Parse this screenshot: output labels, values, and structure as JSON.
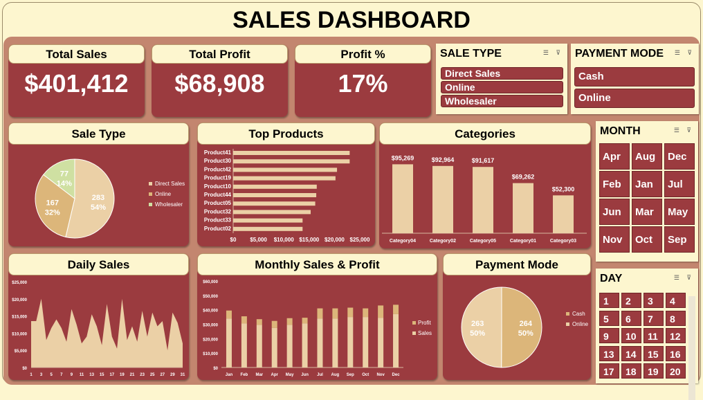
{
  "title": "SALES DASHBOARD",
  "kpis": [
    {
      "label": "Total Sales",
      "value": "$401,412"
    },
    {
      "label": "Total Profit",
      "value": "$68,908"
    },
    {
      "label": "Profit %",
      "value": "17%"
    }
  ],
  "slicers": {
    "sale_type": {
      "title": "SALE TYPE",
      "items": [
        "Direct Sales",
        "Online",
        "Wholesaler"
      ]
    },
    "payment_mode": {
      "title": "PAYMENT MODE",
      "items": [
        "Cash",
        "Online"
      ]
    },
    "month": {
      "title": "MONTH",
      "items": [
        "Apr",
        "Aug",
        "Dec",
        "Feb",
        "Jan",
        "Jul",
        "Jun",
        "Mar",
        "May",
        "Nov",
        "Oct",
        "Sep"
      ]
    },
    "day": {
      "title": "DAY",
      "items": [
        "1",
        "2",
        "3",
        "4",
        "5",
        "6",
        "7",
        "8",
        "9",
        "10",
        "11",
        "12",
        "13",
        "14",
        "15",
        "16",
        "17",
        "18",
        "19",
        "20"
      ]
    }
  },
  "cards": {
    "sale_type": "Sale Type",
    "top_products": "Top Products",
    "categories": "Categories",
    "daily_sales": "Daily Sales",
    "monthly": "Monthly Sales & Profit",
    "payment_mode": "Payment Mode"
  },
  "colors": {
    "card_bg": "#9b3b3f",
    "cream": "#fdf6cf",
    "bar": "#ebd0a6",
    "gold": "#dcb67a",
    "green": "#cfe0a2"
  },
  "chart_data": [
    {
      "id": "sale_type",
      "type": "pie",
      "labels": [
        "Direct Sales",
        "Online",
        "Wholesaler"
      ],
      "values": [
        283,
        167,
        77
      ],
      "percents": [
        "54%",
        "32%",
        "14%"
      ],
      "colors": [
        "#ebd0a6",
        "#dcb67a",
        "#cfe0a2"
      ],
      "legend": "right"
    },
    {
      "id": "top_products",
      "type": "bar",
      "orientation": "horizontal",
      "categories": [
        "Product41",
        "Product30",
        "Product42",
        "Product19",
        "Product10",
        "Product44",
        "Product05",
        "Product32",
        "Product33",
        "Product02"
      ],
      "values": [
        23000,
        23000,
        20500,
        20200,
        16500,
        16400,
        16200,
        15300,
        13700,
        13700
      ],
      "xticks": [
        "$0",
        "$5,000",
        "$10,000",
        "$15,000",
        "$20,000",
        "$25,000"
      ],
      "xlim": [
        0,
        25000
      ]
    },
    {
      "id": "categories",
      "type": "bar",
      "categories": [
        "Category04",
        "Category02",
        "Category05",
        "Category01",
        "Category03"
      ],
      "values": [
        95269,
        92964,
        91617,
        69262,
        52300
      ],
      "labels": [
        "$95,269",
        "$92,964",
        "$91,617",
        "$69,262",
        "$52,300"
      ],
      "ylim": [
        0,
        110000
      ]
    },
    {
      "id": "daily_sales",
      "type": "area",
      "x": [
        1,
        2,
        3,
        4,
        5,
        6,
        7,
        8,
        9,
        10,
        11,
        12,
        13,
        14,
        15,
        16,
        17,
        18,
        19,
        20,
        21,
        22,
        23,
        24,
        25,
        26,
        27,
        28,
        29,
        30,
        31
      ],
      "values": [
        13500,
        13500,
        20000,
        8000,
        11500,
        14000,
        11500,
        7500,
        17000,
        12500,
        7000,
        9000,
        15500,
        12000,
        6500,
        18500,
        9000,
        5500,
        20000,
        8000,
        12000,
        7500,
        16500,
        9000,
        16000,
        12000,
        13500,
        5000,
        16000,
        13000,
        7000
      ],
      "xticks": [
        "1",
        "3",
        "5",
        "7",
        "9",
        "11",
        "13",
        "15",
        "17",
        "19",
        "21",
        "23",
        "25",
        "27",
        "29",
        "31"
      ],
      "yticks": [
        "$0",
        "$5,000",
        "$10,000",
        "$15,000",
        "$20,000",
        "$25,000"
      ],
      "ylim": [
        0,
        25000
      ]
    },
    {
      "id": "monthly",
      "type": "bar",
      "stacked": true,
      "categories": [
        "Jan",
        "Feb",
        "Mar",
        "Apr",
        "May",
        "Jun",
        "Jul",
        "Aug",
        "Sep",
        "Oct",
        "Nov",
        "Dec"
      ],
      "series": [
        {
          "name": "Sales",
          "values": [
            34000,
            30500,
            29500,
            27500,
            29500,
            30500,
            34000,
            34000,
            35000,
            35000,
            34500,
            37000
          ]
        },
        {
          "name": "Profit",
          "values": [
            5500,
            5000,
            4000,
            4800,
            4700,
            4000,
            7000,
            7000,
            6500,
            6000,
            8500,
            6500
          ]
        }
      ],
      "yticks": [
        "$0",
        "$10,000",
        "$20,000",
        "$30,000",
        "$40,000",
        "$50,000",
        "$60,000"
      ],
      "ylim": [
        0,
        60000
      ],
      "legend": "right"
    },
    {
      "id": "payment_mode",
      "type": "pie",
      "labels": [
        "Cash",
        "Online"
      ],
      "values": [
        264,
        263
      ],
      "percents": [
        "50%",
        "50%"
      ],
      "colors": [
        "#dcb67a",
        "#ebd0a6"
      ],
      "legend": "right"
    }
  ]
}
